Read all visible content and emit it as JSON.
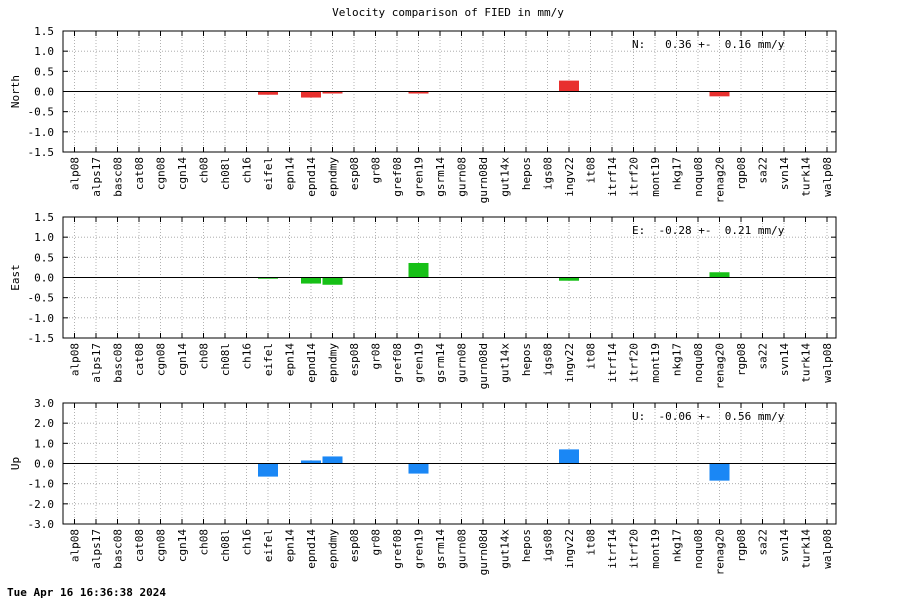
{
  "title": "Velocity comparison of FIED in mm/y",
  "footer": "Tue Apr 16 16:36:38 2024",
  "chart_data": {
    "type": "bar",
    "title": "Velocity comparison of FIED in mm/y",
    "categories": [
      "alp08",
      "alps17",
      "basc08",
      "cat08",
      "cgn08",
      "cgn14",
      "ch08",
      "ch08l",
      "ch16",
      "eifel",
      "epn14",
      "epnd14",
      "epndmy",
      "esp08",
      "gr08",
      "gref08",
      "gren19",
      "gsrm14",
      "gurn08",
      "gurn08d",
      "gut14x",
      "hepos",
      "igs08",
      "ingv22",
      "it08",
      "itrf14",
      "itrf20",
      "mont19",
      "nkg17",
      "noqu08",
      "renag20",
      "rgp08",
      "sa22",
      "svn14",
      "turk14",
      "walp08"
    ],
    "grid": true,
    "panels": [
      {
        "ylabel": "North",
        "color": "#e8302e",
        "ylim": [
          -1.5,
          1.5
        ],
        "yticks": [
          "-1.5",
          "-1.0",
          "-0.5",
          "0.0",
          "0.5",
          "1.0",
          "1.5"
        ],
        "annotation": "N:   0.36 +-  0.16 mm/y",
        "values": [
          null,
          null,
          null,
          null,
          null,
          null,
          null,
          null,
          null,
          -0.08,
          null,
          -0.15,
          -0.05,
          null,
          null,
          null,
          -0.05,
          null,
          null,
          null,
          null,
          null,
          null,
          0.27,
          null,
          null,
          null,
          null,
          null,
          null,
          -0.12,
          null,
          null,
          null,
          null,
          null
        ]
      },
      {
        "ylabel": "East",
        "color": "#16c016",
        "ylim": [
          -1.5,
          1.5
        ],
        "yticks": [
          "-1.5",
          "-1.0",
          "-0.5",
          "0.0",
          "0.5",
          "1.0",
          "1.5"
        ],
        "annotation": "E:  -0.28 +-  0.21 mm/y",
        "values": [
          null,
          null,
          null,
          null,
          null,
          null,
          null,
          null,
          null,
          -0.03,
          null,
          -0.15,
          -0.18,
          null,
          null,
          null,
          0.36,
          null,
          null,
          null,
          null,
          null,
          null,
          -0.08,
          null,
          null,
          null,
          null,
          null,
          null,
          0.13,
          null,
          null,
          null,
          null,
          null
        ]
      },
      {
        "ylabel": "Up",
        "color": "#1a87f5",
        "ylim": [
          -3.0,
          3.0
        ],
        "yticks": [
          "-3.0",
          "-2.0",
          "-1.0",
          "0.0",
          "1.0",
          "2.0",
          "3.0"
        ],
        "annotation": "U:  -0.06 +-  0.56 mm/y",
        "values": [
          null,
          null,
          null,
          null,
          null,
          null,
          null,
          null,
          null,
          -0.65,
          null,
          0.15,
          0.35,
          null,
          null,
          null,
          -0.5,
          null,
          null,
          null,
          null,
          null,
          null,
          0.7,
          null,
          null,
          null,
          null,
          null,
          null,
          -0.85,
          null,
          null,
          null,
          null,
          null
        ]
      }
    ]
  }
}
